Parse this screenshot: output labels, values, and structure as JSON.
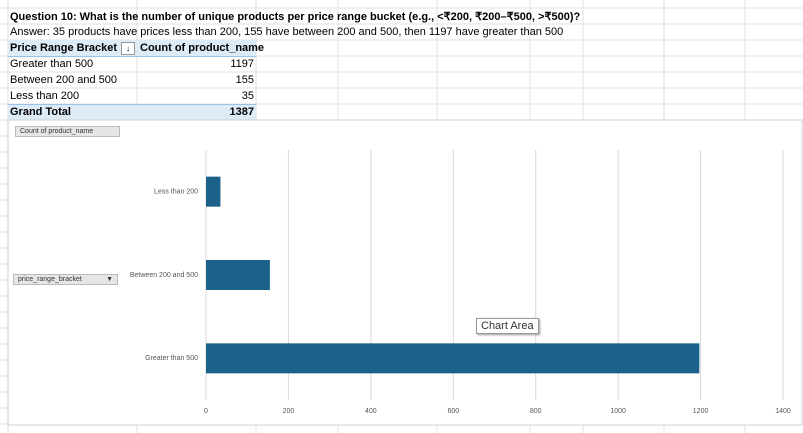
{
  "question": "Question 10: What is the number of unique products per price range bucket (e.g., <₹200, ₹200–₹500, >₹500)?",
  "answer": "Answer: 35 products have prices less than 200, 155 have between 200 and 500, then 1197 have greater than 500",
  "pivot_table": {
    "headers": [
      "Price Range Bracket",
      "Count of product_name"
    ],
    "rows": [
      [
        "Greater than 500",
        1197
      ],
      [
        "Between 200 and 500",
        155
      ],
      [
        "Less than 200",
        35
      ]
    ],
    "total": [
      "Grand Total",
      1387
    ]
  },
  "chart_buttons": {
    "value_field": "Count of product_name",
    "axis_field": "price_range_bracket"
  },
  "tooltip": "Chart Area",
  "chart_data": {
    "type": "bar",
    "orientation": "horizontal",
    "categories": [
      "Less than 200",
      "Between 200 and 500",
      "Greater than 500"
    ],
    "values": [
      35,
      155,
      1197
    ],
    "color": "#1b6189",
    "xlim": [
      0,
      1400
    ],
    "xticks": [
      0,
      200,
      400,
      600,
      800,
      1000,
      1200,
      1400
    ],
    "grid": true
  }
}
